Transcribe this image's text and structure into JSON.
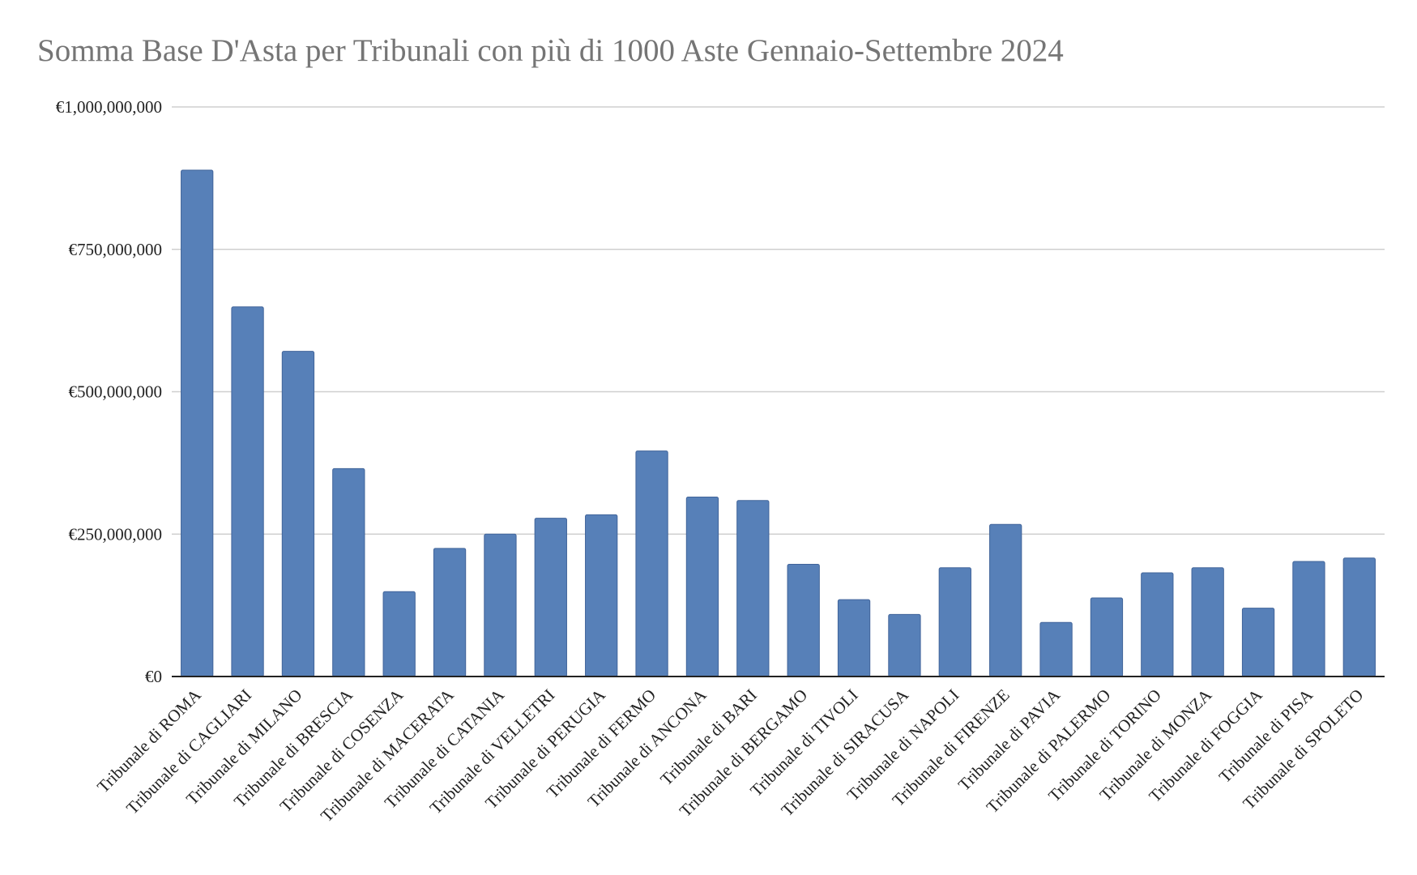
{
  "chart_data": {
    "type": "bar",
    "title": "Somma Base D'Asta per Tribunali con più di 1000 Aste Gennaio-Settembre 2024",
    "xlabel": "",
    "ylabel": "",
    "ylim": [
      0,
      1000000000
    ],
    "yticks": [
      0,
      250000000,
      500000000,
      750000000,
      1000000000
    ],
    "ytick_labels": [
      "€0",
      "€250,000,000",
      "€500,000,000",
      "€750,000,000",
      "€1,000,000,000"
    ],
    "grid": true,
    "legend": "none",
    "bar_color": "#5780b8",
    "categories": [
      "Tribunale di ROMA",
      "Tribunale di CAGLIARI",
      "Tribunale di MILANO",
      "Tribunale di BRESCIA",
      "Tribunale di COSENZA",
      "Tribunale di MACERATA",
      "Tribunale di CATANIA",
      "Tribunale di VELLETRI",
      "Tribunale di PERUGIA",
      "Tribunale di FERMO",
      "Tribunale di ANCONA",
      "Tribunale di BARI",
      "Tribunale di BERGAMO",
      "Tribunale di TIVOLI",
      "Tribunale di SIRACUSA",
      "Tribunale di NAPOLI",
      "Tribunale di FIRENZE",
      "Tribunale di PAVIA",
      "Tribunale di PALERMO",
      "Tribunale di TORINO",
      "Tribunale di MONZA",
      "Tribunale di FOGGIA",
      "Tribunale di PISA",
      "Tribunale di SPOLETO"
    ],
    "values": [
      889000000,
      649000000,
      571000000,
      365000000,
      149000000,
      225000000,
      250000000,
      278000000,
      284000000,
      396000000,
      315000000,
      309000000,
      197000000,
      135000000,
      109000000,
      191000000,
      267000000,
      95000000,
      138000000,
      182000000,
      191000000,
      120000000,
      202000000,
      208000000
    ]
  }
}
